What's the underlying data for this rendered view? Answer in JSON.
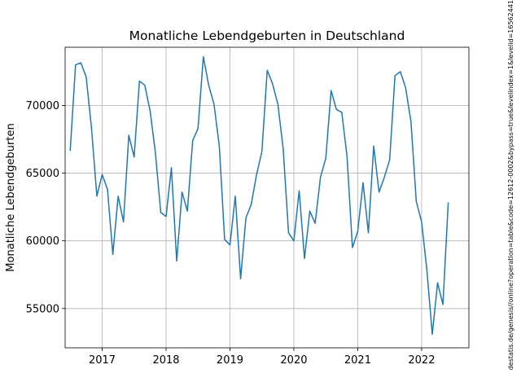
{
  "chart_data": {
    "type": "line",
    "title": "Monatliche Lebendgeburten in Deutschland",
    "xlabel": "",
    "ylabel": "Monatliche Lebendgeburten",
    "source_text": "destatis.de/genesis//online?operation=table&code=12612-0002&bypass=true&levelindex=1&levelid=16562441",
    "xlim": [
      2016.42,
      2022.74
    ],
    "ylim": [
      52100,
      74300
    ],
    "grid": true,
    "x_ticks": [
      {
        "value": 2017,
        "label": "2017"
      },
      {
        "value": 2018,
        "label": "2018"
      },
      {
        "value": 2019,
        "label": "2019"
      },
      {
        "value": 2020,
        "label": "2020"
      },
      {
        "value": 2021,
        "label": "2021"
      },
      {
        "value": 2022,
        "label": "2022"
      }
    ],
    "y_ticks": [
      {
        "value": 55000,
        "label": "55000"
      },
      {
        "value": 60000,
        "label": "60000"
      },
      {
        "value": 65000,
        "label": "65000"
      },
      {
        "value": 70000,
        "label": "70000"
      }
    ],
    "series": [
      {
        "color": "#1f77b4",
        "x": [
          "2016-07",
          "2016-08",
          "2016-09",
          "2016-10",
          "2016-11",
          "2016-12",
          "2017-01",
          "2017-02",
          "2017-03",
          "2017-04",
          "2017-05",
          "2017-06",
          "2017-07",
          "2017-08",
          "2017-09",
          "2017-10",
          "2017-11",
          "2017-12",
          "2018-01",
          "2018-02",
          "2018-03",
          "2018-04",
          "2018-05",
          "2018-06",
          "2018-07",
          "2018-08",
          "2018-09",
          "2018-10",
          "2018-11",
          "2018-12",
          "2019-01",
          "2019-02",
          "2019-03",
          "2019-04",
          "2019-05",
          "2019-06",
          "2019-07",
          "2019-08",
          "2019-09",
          "2019-10",
          "2019-11",
          "2019-12",
          "2020-01",
          "2020-02",
          "2020-03",
          "2020-04",
          "2020-05",
          "2020-06",
          "2020-07",
          "2020-08",
          "2020-09",
          "2020-10",
          "2020-11",
          "2020-12",
          "2021-01",
          "2021-02",
          "2021-03",
          "2021-04",
          "2021-05",
          "2021-06",
          "2021-07",
          "2021-08",
          "2021-09",
          "2021-10",
          "2021-11",
          "2021-12",
          "2022-01",
          "2022-02",
          "2022-03",
          "2022-04",
          "2022-05",
          "2022-06"
        ],
        "values": [
          66700,
          73000,
          73150,
          72100,
          68300,
          63300,
          64900,
          63800,
          59000,
          63300,
          61400,
          67800,
          66200,
          71800,
          71500,
          69600,
          66500,
          62100,
          61800,
          65400,
          58500,
          63600,
          62200,
          67400,
          68300,
          73600,
          71500,
          70100,
          67000,
          60100,
          59700,
          63300,
          57200,
          61700,
          62700,
          64900,
          66600,
          72600,
          71600,
          70100,
          66800,
          60600,
          60000,
          63700,
          58700,
          62200,
          61300,
          64700,
          66100,
          71100,
          69700,
          69500,
          66200,
          59500,
          60700,
          64300,
          60600,
          67000,
          63600,
          64700,
          66000,
          72200,
          72500,
          71300,
          68800,
          62900,
          61400,
          57800,
          53100,
          56900,
          55300,
          62800
        ]
      }
    ]
  }
}
